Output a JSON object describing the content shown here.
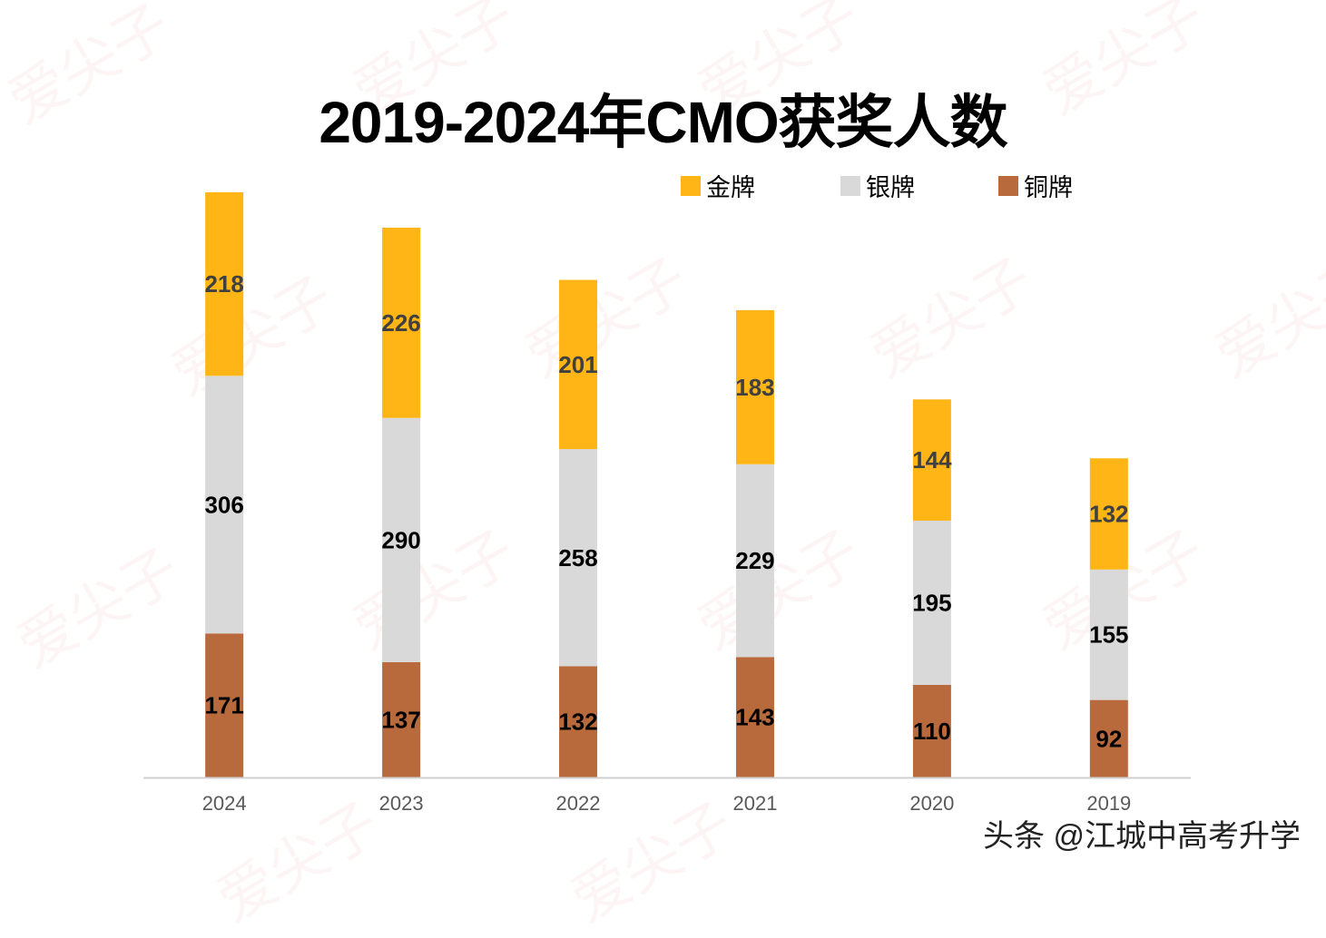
{
  "chart_data": {
    "type": "bar",
    "stacked": true,
    "title": "2019-2024年CMO获奖人数",
    "categories": [
      "2024",
      "2023",
      "2022",
      "2021",
      "2020",
      "2019"
    ],
    "series": [
      {
        "name": "铜牌",
        "color": "#B86A3C",
        "label_color": "#000000",
        "values": [
          171,
          137,
          132,
          143,
          110,
          92
        ]
      },
      {
        "name": "银牌",
        "color": "#D9D9D9",
        "label_color": "#000000",
        "values": [
          306,
          290,
          258,
          229,
          195,
          155
        ]
      },
      {
        "name": "金牌",
        "color": "#FFB515",
        "label_color": "#404040",
        "values": [
          218,
          226,
          201,
          183,
          144,
          132
        ]
      }
    ],
    "legend": [
      "金牌",
      "银牌",
      "铜牌"
    ],
    "legend_position": "top-right",
    "xlabel": "",
    "ylabel": "",
    "ylim": [
      0,
      695
    ],
    "grid": false
  },
  "watermark_text": "头条 @江城中高考升学",
  "background_watermark": "爱尖子"
}
